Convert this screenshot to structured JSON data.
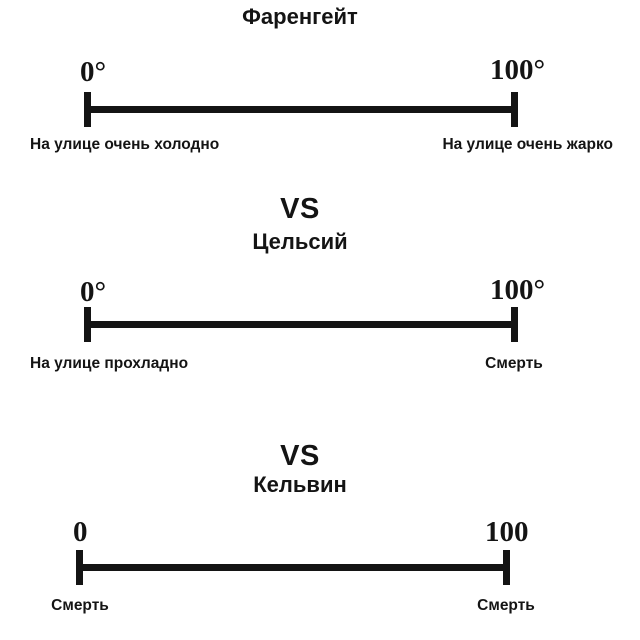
{
  "image": {
    "background": "#ffffff",
    "ink": "#141414",
    "vs_label": "VS",
    "sections": [
      {
        "title": "Фаренгейт",
        "scale": {
          "min": 0,
          "max": 100,
          "min_label": "0°",
          "max_label": "100°"
        },
        "caption_left": "На улице очень холодно",
        "caption_right": "На улице очень жарко"
      },
      {
        "title": "Цельсий",
        "scale": {
          "min": 0,
          "max": 100,
          "min_label": "0°",
          "max_label": "100°"
        },
        "caption_left": "На улице прохладно",
        "caption_right": "Смерть"
      },
      {
        "title": "Кельвин",
        "scale": {
          "min": 0,
          "max": 100,
          "min_label": "0",
          "max_label": "100"
        },
        "caption_left": "Смерть",
        "caption_right": "Смерть"
      }
    ]
  }
}
